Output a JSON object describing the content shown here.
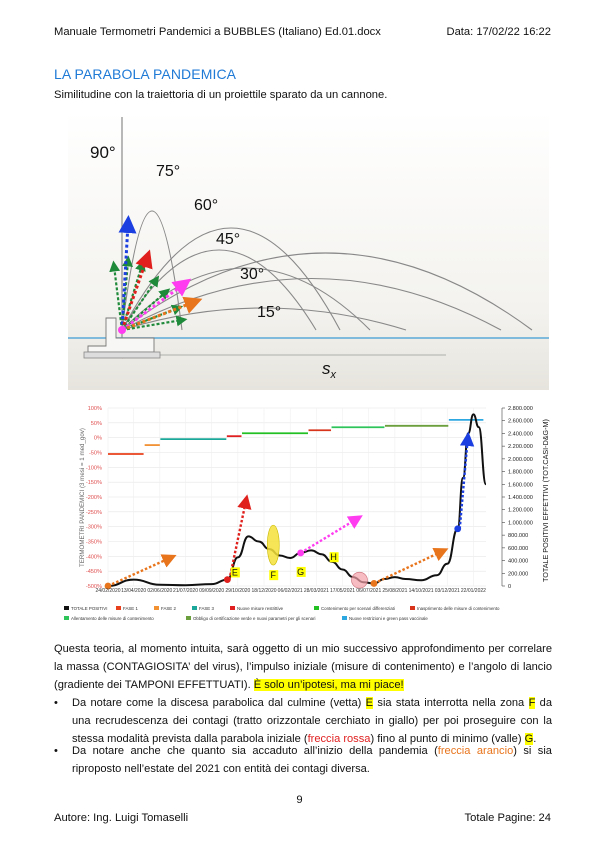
{
  "header": {
    "filename": "Manuale Termometri Pandemici a BUBBLES (Italiano) Ed.01.docx",
    "date": "Data: 17/02/22 16:22"
  },
  "title": "LA PARABOLA PANDEMICA",
  "subtitle": "Similitudine con la traiettoria di un proiettile sparato da un cannone.",
  "projectile_figure": {
    "angles": [
      "90°",
      "75°",
      "60°",
      "45°",
      "30°",
      "15°"
    ],
    "axis_label": "s",
    "axis_sub": "x"
  },
  "chart_data": {
    "type": "line",
    "x_ticks": [
      "24/02/2020",
      "13/04/2020",
      "02/06/2020",
      "21/07/2020",
      "09/09/2020",
      "29/10/2020",
      "18/12/2020",
      "06/02/2021",
      "28/03/2021",
      "17/05/2021",
      "06/07/2021",
      "25/08/2021",
      "14/10/2021",
      "03/12/2021",
      "22/01/2022"
    ],
    "y_left_ticks": [
      "100%",
      "50%",
      "0%",
      "-50%",
      "-100%",
      "-150%",
      "-200%",
      "-250%",
      "-300%",
      "-350%",
      "-400%",
      "-450%",
      "-500%"
    ],
    "y_right_ticks": [
      "2.800.000",
      "2.600.000",
      "2.400.000",
      "2.200.000",
      "2.000.000",
      "1.800.000",
      "1.600.000",
      "1.400.000",
      "1.200.000",
      "1.000.000",
      "800.000",
      "600.000",
      "400.000",
      "200.000",
      "0"
    ],
    "ylabel_left": "TERMOMETRI PANDEMICI (3 mesi = 1 med_gov)",
    "ylabel_right": "TOTALE POSITIVI EFFETTIVI (TOT.CASI-D&G-M)",
    "ylim_right": [
      0,
      2800000
    ],
    "series": [
      {
        "name": "TOTALE POSITIVI",
        "x": [
          "24/02/2020",
          "13/04/2020",
          "02/06/2020",
          "21/07/2020",
          "09/09/2020",
          "09/10/2020",
          "29/10/2020",
          "18/11/2020",
          "08/12/2020",
          "28/12/2020",
          "17/01/2021",
          "06/02/2021",
          "26/02/2021",
          "18/03/2021",
          "07/04/2021",
          "27/04/2021",
          "17/05/2021",
          "06/06/2021",
          "26/06/2021",
          "16/07/2021",
          "05/08/2021",
          "25/08/2021",
          "14/09/2021",
          "14/10/2021",
          "13/11/2021",
          "03/12/2021",
          "23/12/2021",
          "02/01/2022",
          "12/01/2022",
          "22/01/2022",
          "01/02/2022",
          "15/02/2022"
        ],
        "values": [
          0,
          100000,
          20000,
          12000,
          30000,
          100000,
          450000,
          780000,
          700000,
          580000,
          480000,
          440000,
          520000,
          560000,
          500000,
          380000,
          260000,
          140000,
          60000,
          40000,
          110000,
          140000,
          110000,
          90000,
          170000,
          350000,
          900000,
          1700000,
          2400000,
          2700000,
          2500000,
          1600000
        ]
      }
    ],
    "phases": [
      {
        "name": "FASE 1",
        "color": "#e8401c",
        "value": "-55%"
      },
      {
        "name": "FASE 2",
        "color": "#f29132",
        "value": "-25%"
      },
      {
        "name": "FASE 3",
        "color": "#1ba89a",
        "value": "-5%"
      },
      {
        "name": "Nuove misure restrittive",
        "color": "#e02020",
        "value": "5%"
      },
      {
        "name": "Contenimento per scenari differenziati",
        "color": "#22c022",
        "value": "15%"
      },
      {
        "name": "Inasprimento delle misure di contenimento",
        "color": "#d8341c",
        "value": "25%"
      },
      {
        "name": "Allentamento delle misure di contenimento",
        "color": "#2ec45a",
        "value": "35%"
      },
      {
        "name": "Obbligo di certificazione verde e nuovi parametri per gli scenari",
        "color": "#6b9e3c",
        "value": "40%"
      },
      {
        "name": "Nuove restrizioni e green pass vaccinale",
        "color": "#2ea8e0",
        "value": "60%"
      }
    ],
    "point_labels": [
      "E",
      "F",
      "G",
      "H"
    ],
    "legend": [
      "TOTALE POSITIVI",
      "FASE 1",
      "FASE 2",
      "FASE 3",
      "Nuove misure restrittive",
      "Contenimento per scenari differenziati",
      "Inasprimento delle misure di contenimento",
      "Allentamento delle misure di contenimento",
      "Obbligo di certificazione verde e nuovi parametri per gli scenari",
      "Nuove restrizioni e green pass vaccinale"
    ]
  },
  "paragraph": {
    "p1": "Questa teoria, al momento intuita, sarà oggetto di un mio successivo approfondimento per correlare la massa (CONTAGIOSITA’ del virus), l’impulso iniziale (misure di contenimento) e l’angolo di lancio (gradiente dei TAMPONI EFFETTUATI). ",
    "p1_hl": "È solo un’ipotesi, ma mi piace!"
  },
  "bullets": {
    "b1_a": "Da notare come la discesa parabolica dal culmine (vetta) ",
    "b1_E": "E",
    "b1_b": " sia stata interrotta nella zona ",
    "b1_F": "F",
    "b1_c": " da una recrudescenza dei contagi (tratto orizzontale cerchiato in giallo) per poi proseguire con la stessa modalità prevista dalla parabola iniziale (",
    "b1_red": "freccia rossa",
    "b1_d": ") fino al punto di minimo (valle) ",
    "b1_G": "G",
    "b1_e": ".",
    "b2_a": "Da notare anche che quanto sia accaduto all’inizio della pandemia (",
    "b2_orange": "freccia arancio",
    "b2_b": ") si sia riproposto nell’estate del 2021 con entità dei contagi diversa."
  },
  "footer": {
    "page_number": "9",
    "author": "Autore: Ing. Luigi Tomaselli",
    "total_pages": "Totale Pagine: 24"
  }
}
